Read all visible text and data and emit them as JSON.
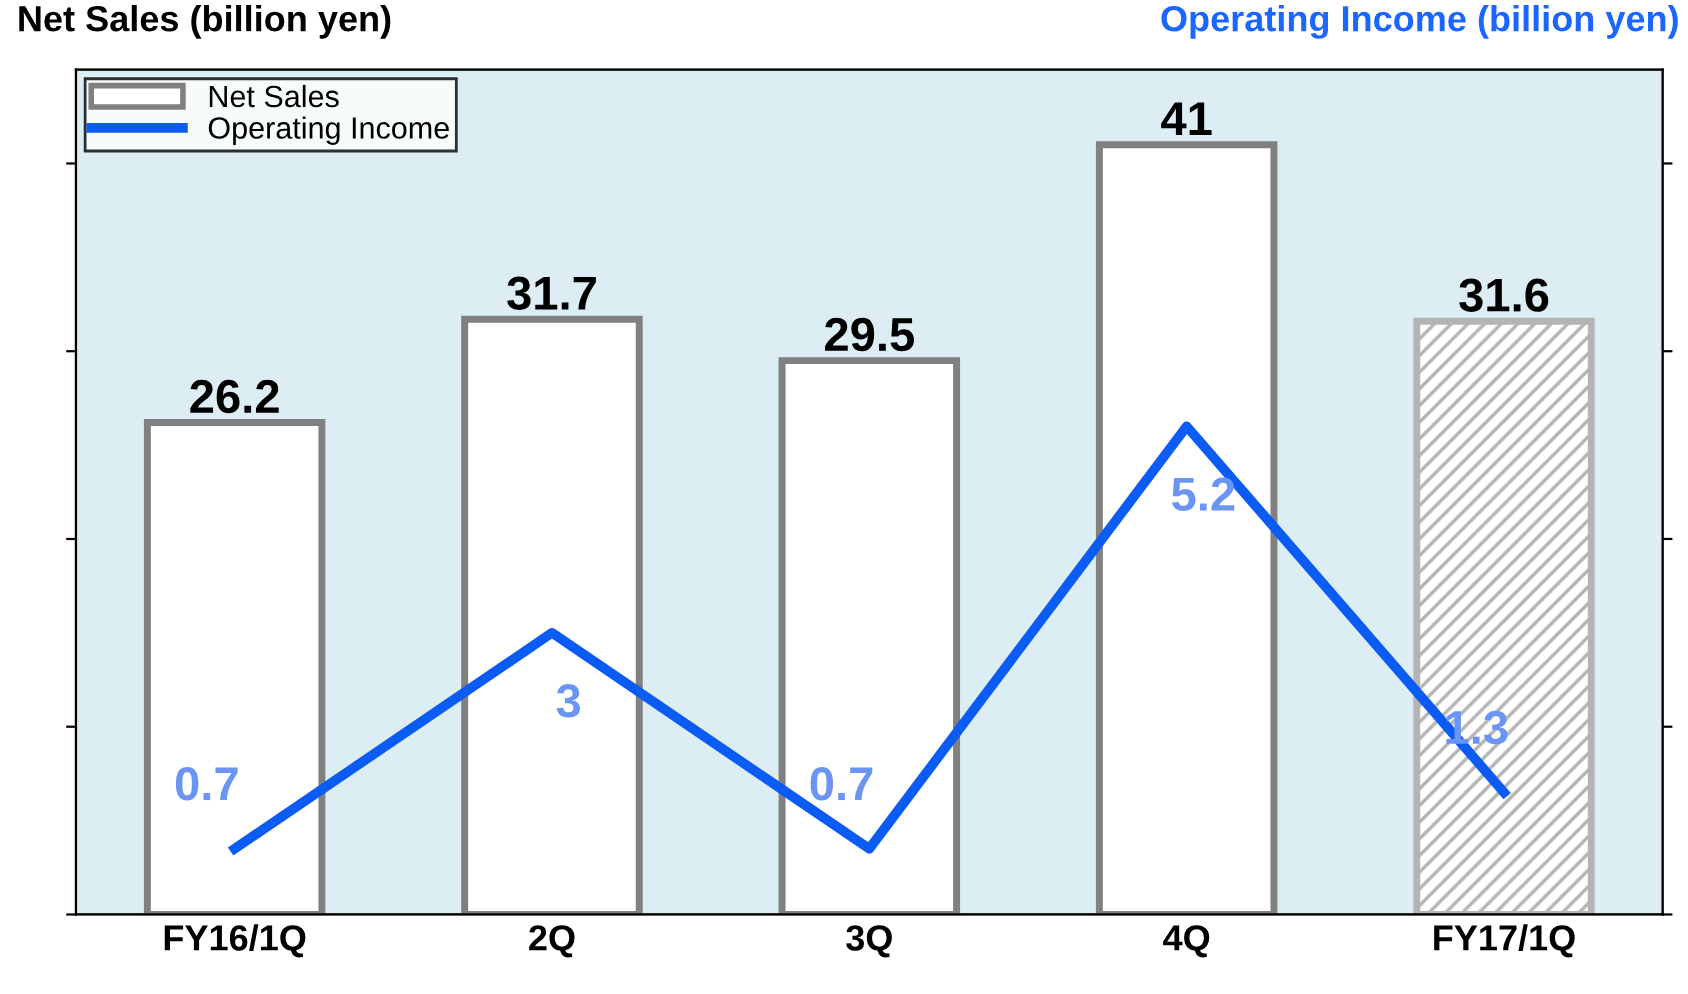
{
  "chart_data": {
    "type": "bar",
    "ylabel": "Net Sales (billion yen)",
    "y2label": "Operating Income (billion yen)",
    "categories": [
      "FY16/1Q",
      "2Q",
      "3Q",
      "4Q",
      "FY17/1Q"
    ],
    "series": [
      {
        "name": "Net Sales",
        "color": "#808080",
        "colors": [
          "#ffffff",
          "#ffffff",
          "#ffffff",
          "#ffffff",
          "#b4b4b4"
        ],
        "values": [
          26.2,
          31.7,
          29.5,
          41,
          31.6
        ]
      },
      {
        "name": "Operating Income",
        "type": "line",
        "axis": "y2",
        "color": "#0a5cf5",
        "values": [
          0.7,
          3,
          0.7,
          5.2,
          1.3
        ]
      }
    ],
    "ylim": [
      0,
      45
    ],
    "yticks": [
      {
        "value": 0,
        "label": null
      },
      {
        "value": 10,
        "label": null
      },
      {
        "value": 20,
        "label": null
      },
      {
        "value": 30,
        "label": null
      },
      {
        "value": 40,
        "label": null
      }
    ],
    "y2lim": [
      0,
      9
    ],
    "y2ticks": [
      {
        "value": 0,
        "label": null
      },
      {
        "value": 2,
        "label": null
      },
      {
        "value": 4,
        "label": null
      },
      {
        "value": 6,
        "label": null
      },
      {
        "value": 8,
        "label": null
      }
    ],
    "tick_labels": "x",
    "data_labels": true,
    "legend": "top left",
    "grid": false,
    "marker": "none",
    "line_style": "solid"
  }
}
